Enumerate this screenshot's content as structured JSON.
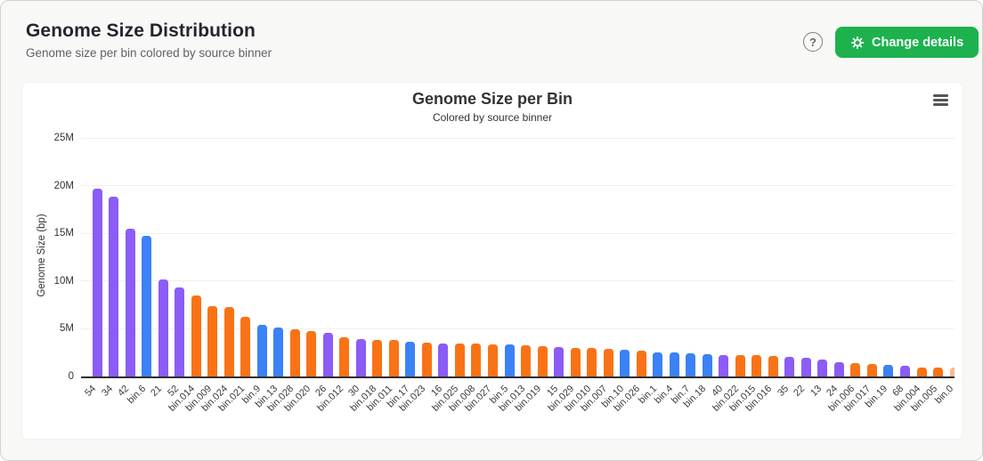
{
  "header": {
    "title": "Genome Size Distribution",
    "subtitle": "Genome size per bin colored by source binner",
    "help_glyph": "?",
    "button": {
      "label": "Change details",
      "icon": "gear-icon",
      "color": "#1db24e"
    }
  },
  "chart_data": {
    "type": "bar",
    "title": "Genome Size per Bin",
    "subtitle": "Colored by source binner",
    "xlabel": "",
    "ylabel": "Genome Size (bp)",
    "ylim": [
      0,
      25000000
    ],
    "yticks": [
      0,
      5000000,
      10000000,
      15000000,
      20000000,
      25000000
    ],
    "ytick_labels": [
      "0",
      "5M",
      "10M",
      "15M",
      "20M",
      "25M"
    ],
    "grid": true,
    "legend": false,
    "x_label_rotation": -45,
    "last_bar_clipped": true,
    "menu_icon": "hamburger-menu",
    "colors": {
      "purple": "#8b5cf6",
      "blue": "#3b82f6",
      "orange": "#f97316"
    },
    "categories": [
      "54",
      "34",
      "42",
      "bin.6",
      "21",
      "52",
      "bin.014",
      "bin.009",
      "bin.024",
      "bin.021",
      "bin.9",
      "bin.13",
      "bin.028",
      "bin.020",
      "26",
      "bin.012",
      "30",
      "bin.018",
      "bin.011",
      "bin.17",
      "bin.023",
      "16",
      "bin.025",
      "bin.008",
      "bin.027",
      "bin.5",
      "bin.013",
      "bin.019",
      "15",
      "bin.029",
      "bin.010",
      "bin.007",
      "bin.10",
      "bin.026",
      "bin.1",
      "bin.4",
      "bin.7",
      "bin.18",
      "40",
      "bin.022",
      "bin.015",
      "bin.016",
      "35",
      "22",
      "13",
      "24",
      "bin.006",
      "bin.017",
      "bin.19",
      "68",
      "bin.004",
      "bin.005",
      "bin.0"
    ],
    "values": [
      19700000,
      18850000,
      15550000,
      14800000,
      10200000,
      9350000,
      8500000,
      7400000,
      7300000,
      6250000,
      5450000,
      5150000,
      4950000,
      4800000,
      4600000,
      4150000,
      3950000,
      3870000,
      3800000,
      3620000,
      3520000,
      3460000,
      3440000,
      3420000,
      3380000,
      3330000,
      3300000,
      3150000,
      3080000,
      3020000,
      3000000,
      2920000,
      2820000,
      2700000,
      2560000,
      2520000,
      2460000,
      2360000,
      2280000,
      2260000,
      2220000,
      2120000,
      2060000,
      1960000,
      1760000,
      1520000,
      1400000,
      1300000,
      1200000,
      1100000,
      960000,
      950000,
      900000
    ],
    "groups": [
      "purple",
      "purple",
      "purple",
      "blue",
      "purple",
      "purple",
      "orange",
      "orange",
      "orange",
      "orange",
      "blue",
      "blue",
      "orange",
      "orange",
      "purple",
      "orange",
      "purple",
      "orange",
      "orange",
      "blue",
      "orange",
      "purple",
      "orange",
      "orange",
      "orange",
      "blue",
      "orange",
      "orange",
      "purple",
      "orange",
      "orange",
      "orange",
      "blue",
      "orange",
      "blue",
      "blue",
      "blue",
      "blue",
      "purple",
      "orange",
      "orange",
      "orange",
      "purple",
      "purple",
      "purple",
      "purple",
      "orange",
      "orange",
      "blue",
      "purple",
      "orange",
      "orange",
      "orange"
    ]
  }
}
